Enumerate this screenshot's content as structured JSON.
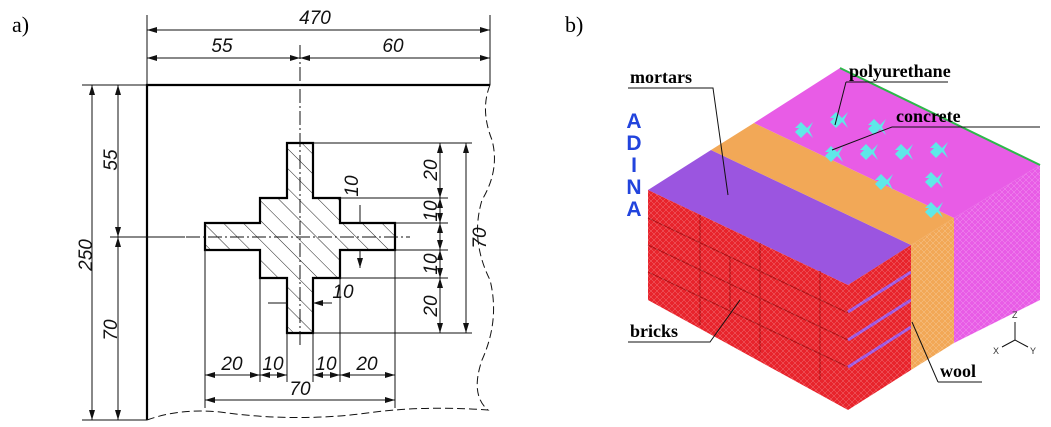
{
  "panel_a": {
    "label": "a)",
    "dimensions": {
      "overall_width": 470,
      "left_offset": 55,
      "right_offset": 60,
      "overall_height": 250,
      "top_offset": 55,
      "bottom_offset": 70,
      "cross_vertical": [
        20,
        10,
        10,
        20
      ],
      "cross_height": 70,
      "arm_thickness": 10,
      "stem_thickness": 10,
      "cross_horizontal": [
        20,
        10,
        10,
        20
      ],
      "cross_width": 70
    }
  },
  "panel_b": {
    "label": "b)",
    "logo": [
      "A",
      "D",
      "I",
      "N",
      "A"
    ],
    "materials": [
      "mortars",
      "polyurethane",
      "concrete",
      "bricks",
      "wool"
    ],
    "axes": [
      "Z",
      "X",
      "Y"
    ]
  }
}
